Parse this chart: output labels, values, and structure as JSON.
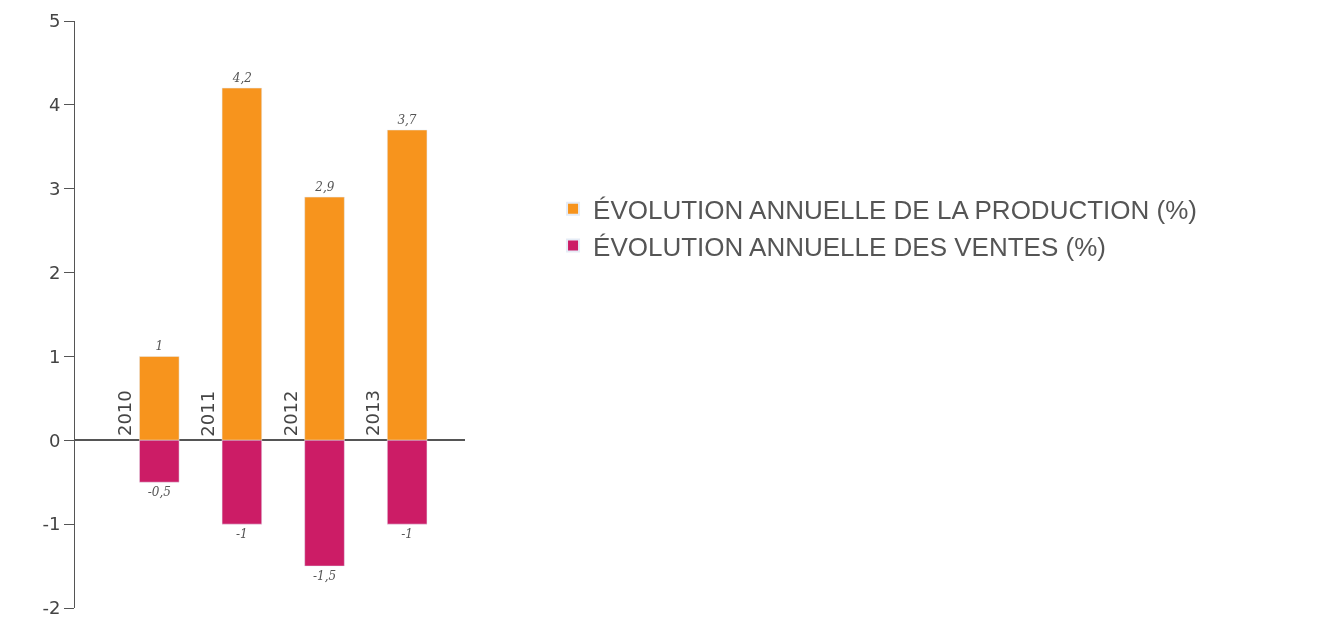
{
  "chart_data": {
    "type": "bar",
    "stacked": true,
    "categories": [
      "2010",
      "2011",
      "2012",
      "2013"
    ],
    "series": [
      {
        "name": "ÉVOLUTION ANNUELLE DE LA PRODUCTION (%)",
        "color": "#f7941d",
        "values": [
          1,
          4.2,
          2.9,
          3.7
        ],
        "value_labels": [
          "1",
          "4,2",
          "2,9",
          "3,7"
        ]
      },
      {
        "name": "ÉVOLUTION ANNUELLE DES VENTES (%)",
        "color": "#cc1c66",
        "values": [
          -0.5,
          -1,
          -1.5,
          -1
        ],
        "value_labels": [
          "-0,5",
          "-1",
          "-1,5",
          "-1"
        ]
      }
    ],
    "ylim": [
      -2,
      5
    ],
    "yticks": [
      -2,
      -1,
      0,
      1,
      2,
      3,
      4,
      5
    ],
    "legend": "right"
  }
}
